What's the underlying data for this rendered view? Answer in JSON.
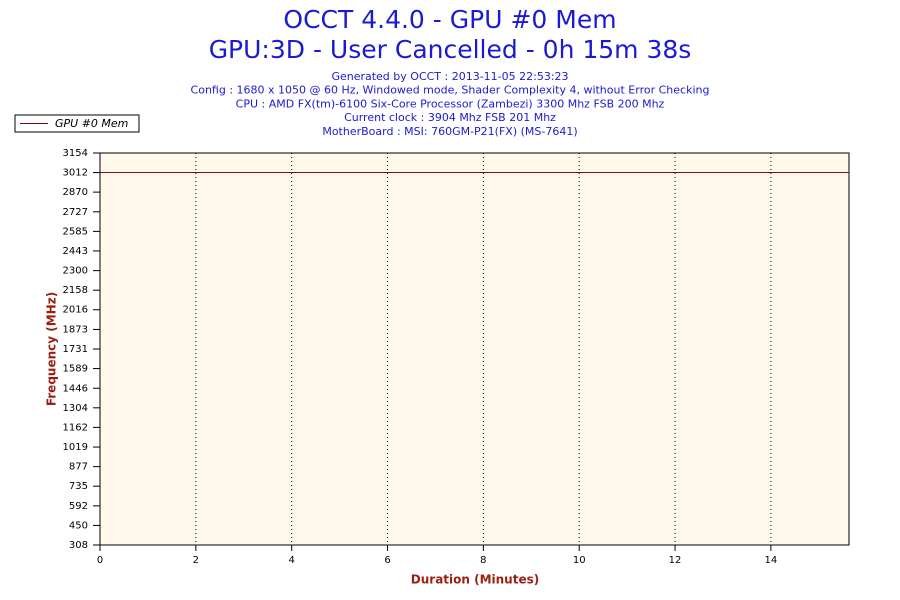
{
  "chart_data": {
    "type": "line",
    "title": "OCCT 4.4.0 - GPU #0 Mem",
    "subtitle": "GPU:3D - User Cancelled - 0h 15m 38s",
    "info": [
      "Generated by OCCT : 2013-11-05 22:53:23",
      "Config : 1680 x 1050 @ 60 Hz, Windowed mode, Shader Complexity 4, without Error Checking",
      "CPU : AMD FX(tm)-6100 Six-Core Processor (Zambezi) 3300 Mhz FSB 200 Mhz",
      "Current clock : 3904 Mhz FSB 201 Mhz",
      "MotherBoard : MSI: 760GM-P21(FX) (MS-7641)"
    ],
    "x_label": "Duration (Minutes)",
    "y_label": "Frequency (MHz)",
    "x": [
      0,
      15.63
    ],
    "series": [
      {
        "name": "GPU #0 Mem",
        "color": "#7a1010",
        "values": [
          3012,
          3012
        ]
      }
    ],
    "xlim": [
      0,
      15.63
    ],
    "xticks": [
      0,
      2,
      4,
      6,
      8,
      10,
      12,
      14
    ],
    "ylim": [
      308,
      3154
    ],
    "yticks": [
      308,
      450,
      592,
      735,
      877,
      1019,
      1162,
      1304,
      1446,
      1589,
      1731,
      1873,
      2016,
      2158,
      2300,
      2443,
      2585,
      2727,
      2870,
      3012,
      3154
    ],
    "grid": true,
    "legend": "top-left"
  }
}
